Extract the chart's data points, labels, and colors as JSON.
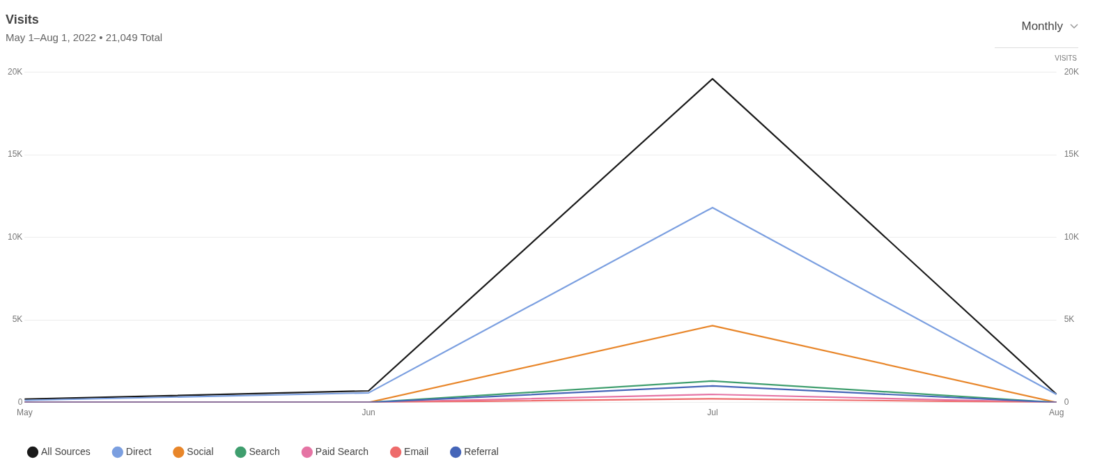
{
  "chart_data": {
    "type": "line",
    "title": "Visits",
    "subtitle": "May 1–Aug 1, 2022 • 21,049 Total",
    "y2label": "VISITS",
    "annotations": [
      "Monthly"
    ],
    "categories": [
      "May",
      "Jun",
      "Jul",
      "Aug"
    ],
    "series": [
      {
        "name": "All Sources",
        "color": "#1a1a1a",
        "values": [
          200,
          700,
          19600,
          500
        ]
      },
      {
        "name": "Direct",
        "color": "#7b9fe0",
        "values": [
          130,
          580,
          11800,
          490
        ]
      },
      {
        "name": "Social",
        "color": "#e8862a",
        "values": [
          0,
          0,
          4650,
          0
        ]
      },
      {
        "name": "Search",
        "color": "#3f9e6e",
        "values": [
          0,
          0,
          1300,
          0
        ]
      },
      {
        "name": "Paid Search",
        "color": "#e574a4",
        "values": [
          0,
          0,
          490,
          0
        ]
      },
      {
        "name": "Email",
        "color": "#ee6b6b",
        "values": [
          0,
          0,
          220,
          0
        ]
      },
      {
        "name": "Referral",
        "color": "#4565b8",
        "values": [
          0,
          0,
          1000,
          0
        ]
      }
    ],
    "ylim": [
      0,
      20000
    ],
    "yticks": [
      {
        "value": 0,
        "label": "0"
      },
      {
        "value": 5000,
        "label": "5K"
      },
      {
        "value": 10000,
        "label": "10K"
      },
      {
        "value": 15000,
        "label": "15K"
      },
      {
        "value": 20000,
        "label": "20K"
      }
    ],
    "y2lim": [
      0,
      20000
    ],
    "y2ticks": [
      {
        "value": 0,
        "label": "0"
      },
      {
        "value": 5000,
        "label": "5K"
      },
      {
        "value": 10000,
        "label": "10K"
      },
      {
        "value": 15000,
        "label": "15K"
      },
      {
        "value": 20000,
        "label": "20K"
      }
    ],
    "grid": "y",
    "legend": "bottom left",
    "marker": "none",
    "line_style": "solid"
  }
}
